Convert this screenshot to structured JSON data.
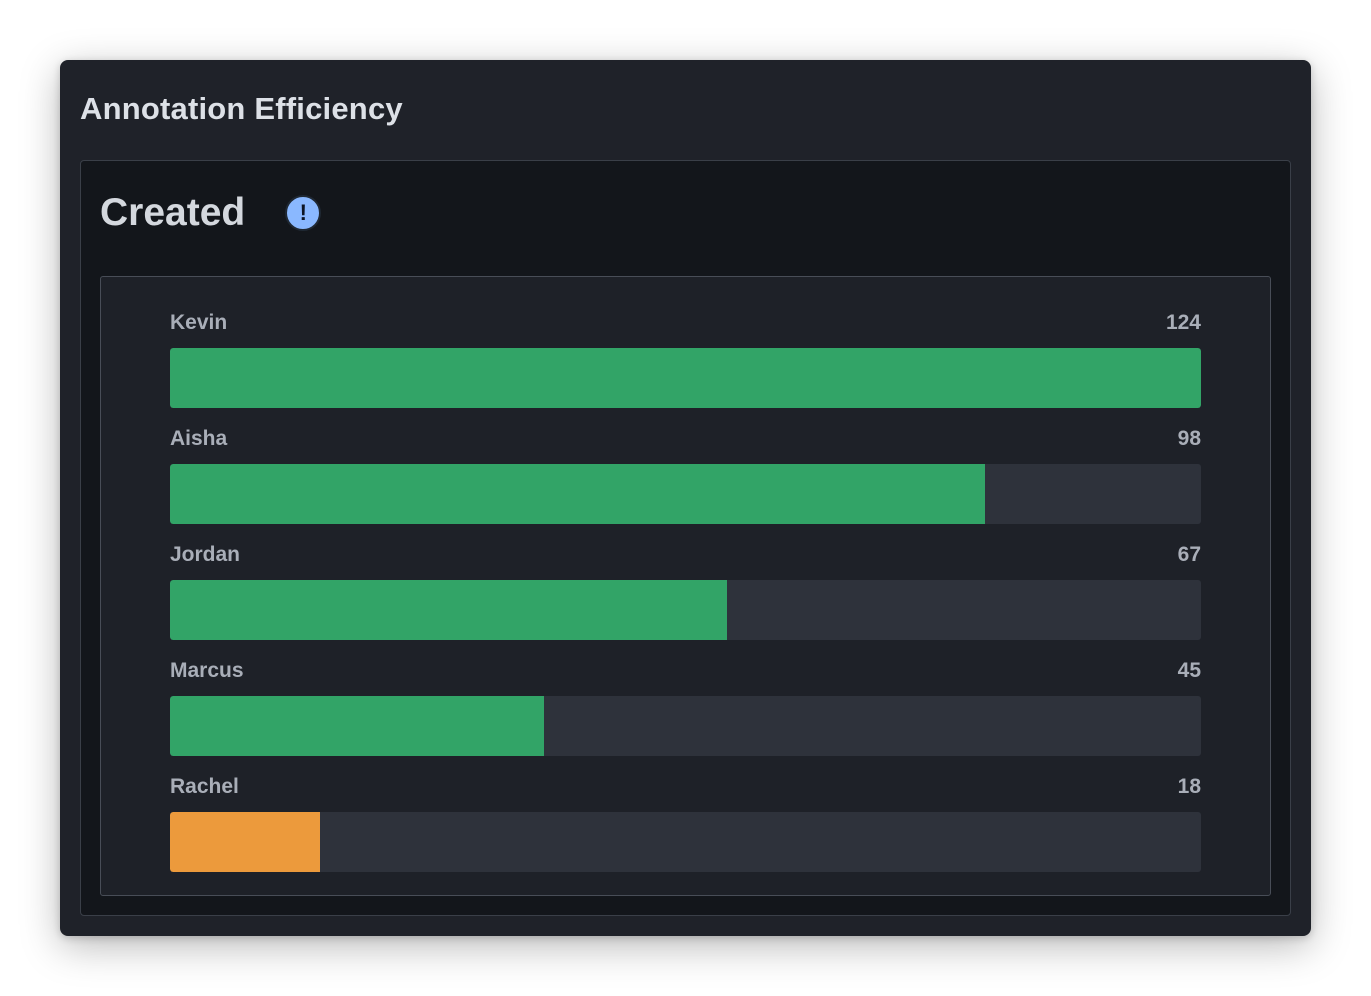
{
  "card": {
    "title": "Annotation Efficiency"
  },
  "panel": {
    "title": "Created",
    "info_icon": "exclamation-icon",
    "info_symbol": "!"
  },
  "colors": {
    "high": "#32a467",
    "low": "#ec9a3c",
    "track": "#2e323b",
    "info": "#8ab8ff"
  },
  "max_value": 124,
  "rows": [
    {
      "name": "Kevin",
      "value": 124,
      "display": "124",
      "status": "high"
    },
    {
      "name": "Aisha",
      "value": 98,
      "display": "98",
      "status": "high"
    },
    {
      "name": "Jordan",
      "value": 67,
      "display": "67",
      "status": "high"
    },
    {
      "name": "Marcus",
      "value": 45,
      "display": "45",
      "status": "high"
    },
    {
      "name": "Rachel",
      "value": 18,
      "display": "18",
      "status": "low"
    }
  ]
}
